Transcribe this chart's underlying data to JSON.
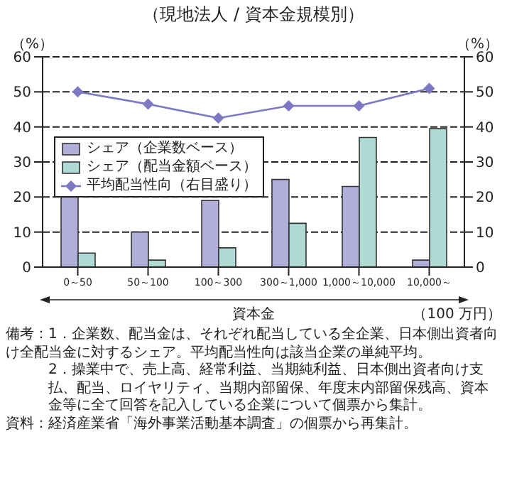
{
  "chart_data": {
    "type": "bar",
    "title": "（現地法人 / 資本金規模別）",
    "xlabel": "資本金",
    "ylabel": "（%）",
    "y2label": "（%）",
    "categories": [
      "0～50",
      "50～100",
      "100～300",
      "300～1,000",
      "1,000～10,000",
      "10,000～"
    ],
    "series": [
      {
        "name": "シェア（企業数ベース）",
        "color": "#b1afda",
        "values": [
          20,
          10,
          19,
          25,
          23,
          2
        ]
      },
      {
        "name": "シェア（配当金額ベース）",
        "color": "#aedbd3",
        "values": [
          4,
          2,
          5.5,
          12.5,
          37,
          39.5
        ]
      },
      {
        "name": "平均配当性向（右目盛り）",
        "type": "line",
        "axis": "y2",
        "color": "#7c79c2",
        "values": [
          50,
          46.5,
          42.5,
          46,
          46,
          51
        ]
      }
    ],
    "ylim": [
      0,
      60
    ],
    "yticks": [
      0,
      10,
      20,
      30,
      40,
      50,
      60
    ],
    "y2lim": [
      0,
      60
    ],
    "y2ticks": [
      0,
      10,
      20,
      30,
      40,
      50,
      60
    ],
    "grid": "y",
    "legend": "left",
    "marker": "diamond",
    "annotations": [
      "（100 万円）",
      "備考：1．企業数、配当金は、それぞれ配当している全企業、日本側出資者向け全配当金に対するシェア。平均配当性向は該当企業の単純平均。",
      "2．操業中で、売上高、経常利益、当期純利益、日本側出資者向け支払、配当、ロイヤリティ、当期内部留保、年度末内部留保残高、資本金等に全て回答を記入している企業について個票から集計。",
      "資料：経済産業省「海外事業活動基本調査」の個票から再集計。"
    ]
  }
}
